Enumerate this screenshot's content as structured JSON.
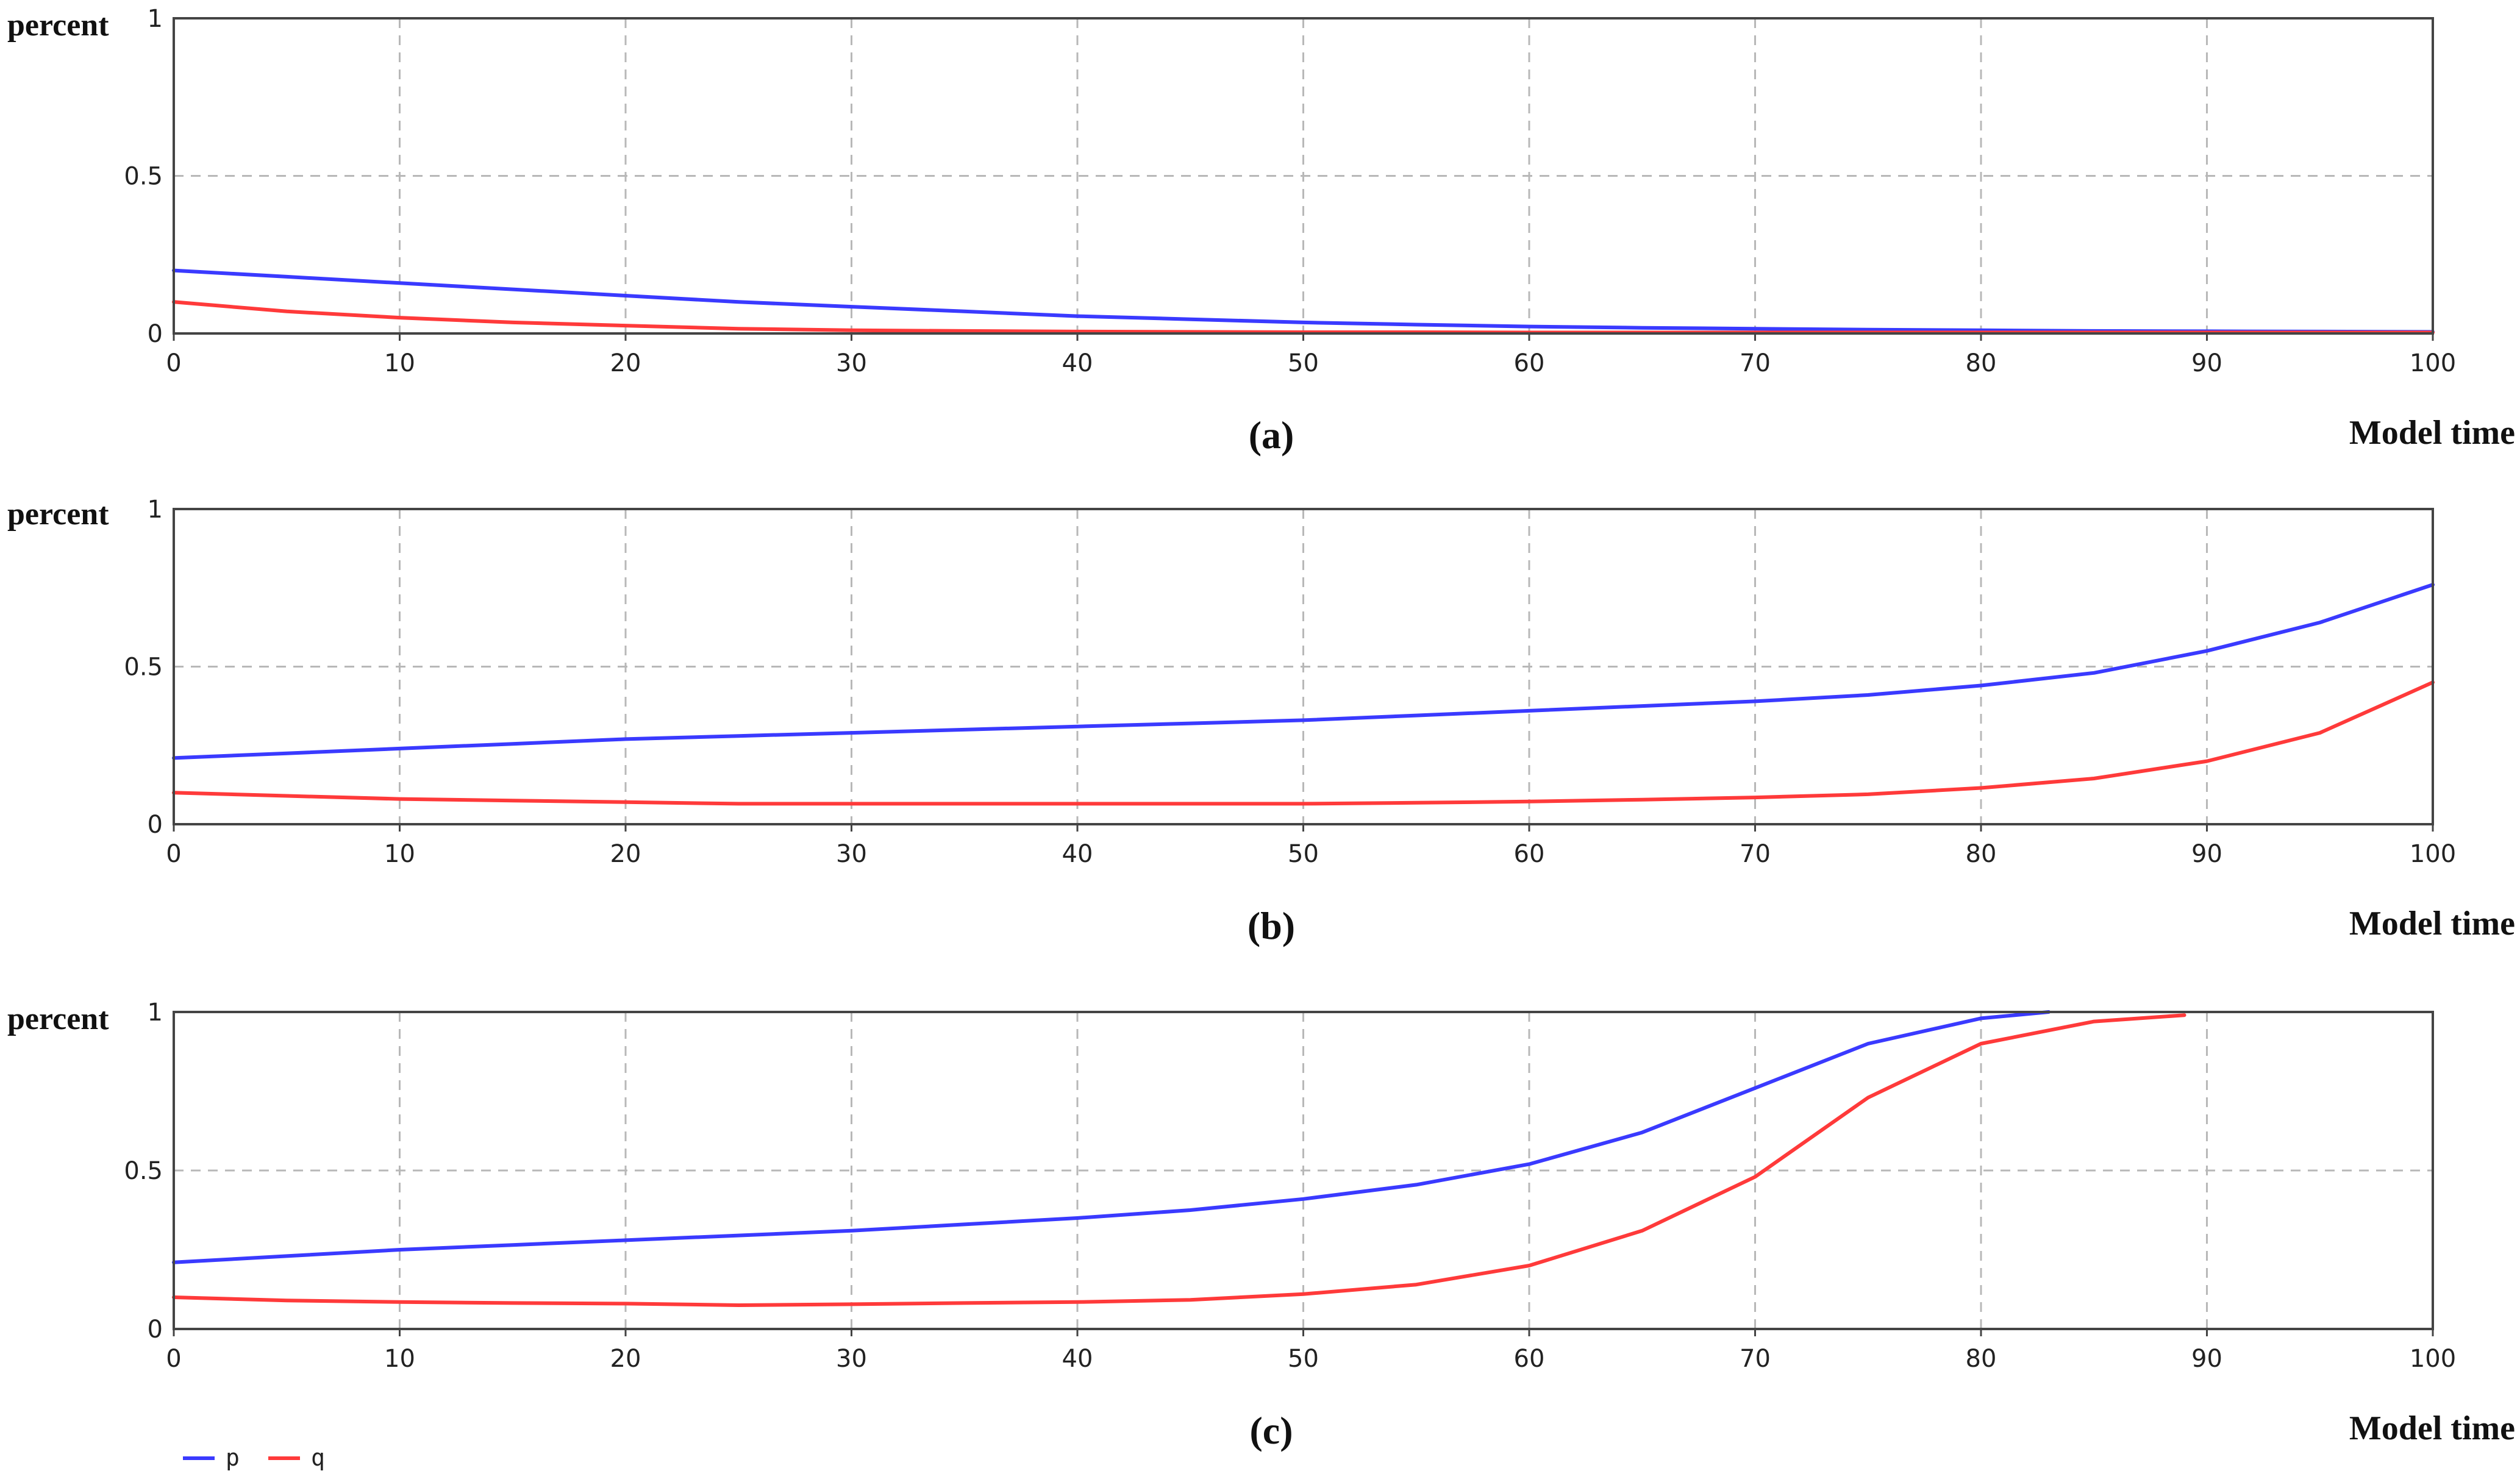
{
  "colors": {
    "p": "#3a3aff",
    "q": "#ff3a3a",
    "grid": "#b8b8b8"
  },
  "legend": [
    {
      "name": "p",
      "color": "#3a3aff"
    },
    {
      "name": "q",
      "color": "#ff3a3a"
    }
  ],
  "chart_data": [
    {
      "type": "line",
      "panel_label": "(a)",
      "ylabel": "percent",
      "xlabel": "Model time",
      "xlim": [
        0,
        100
      ],
      "ylim": [
        0,
        1
      ],
      "xticks": [
        0,
        10,
        20,
        30,
        40,
        50,
        60,
        70,
        80,
        90,
        100
      ],
      "yticks": [
        0,
        0.5,
        1
      ],
      "grid": true,
      "series": [
        {
          "name": "p",
          "color": "#3a3aff",
          "x": [
            0,
            5,
            10,
            15,
            20,
            25,
            30,
            35,
            40,
            45,
            50,
            55,
            60,
            65,
            70,
            75,
            80,
            85,
            90,
            95,
            100
          ],
          "y": [
            0.2,
            0.18,
            0.16,
            0.14,
            0.12,
            0.1,
            0.085,
            0.07,
            0.055,
            0.045,
            0.035,
            0.028,
            0.022,
            0.018,
            0.015,
            0.012,
            0.01,
            0.008,
            0.007,
            0.006,
            0.005
          ]
        },
        {
          "name": "q",
          "color": "#ff3a3a",
          "x": [
            0,
            5,
            10,
            15,
            20,
            25,
            30,
            35,
            40,
            45,
            50,
            55,
            60,
            65,
            70,
            75,
            80,
            85,
            90,
            95,
            100
          ],
          "y": [
            0.1,
            0.07,
            0.05,
            0.035,
            0.025,
            0.015,
            0.01,
            0.008,
            0.006,
            0.005,
            0.004,
            0.004,
            0.003,
            0.003,
            0.003,
            0.003,
            0.003,
            0.003,
            0.003,
            0.003,
            0.003
          ]
        }
      ]
    },
    {
      "type": "line",
      "panel_label": "(b)",
      "ylabel": "percent",
      "xlabel": "Model time",
      "xlim": [
        0,
        100
      ],
      "ylim": [
        0,
        1
      ],
      "xticks": [
        0,
        10,
        20,
        30,
        40,
        50,
        60,
        70,
        80,
        90,
        100
      ],
      "yticks": [
        0,
        0.5,
        1
      ],
      "grid": true,
      "series": [
        {
          "name": "p",
          "color": "#3a3aff",
          "x": [
            0,
            5,
            10,
            15,
            20,
            25,
            30,
            35,
            40,
            45,
            50,
            55,
            60,
            65,
            70,
            75,
            80,
            85,
            90,
            95,
            100
          ],
          "y": [
            0.21,
            0.225,
            0.24,
            0.255,
            0.27,
            0.28,
            0.29,
            0.3,
            0.31,
            0.32,
            0.33,
            0.345,
            0.36,
            0.375,
            0.39,
            0.41,
            0.44,
            0.48,
            0.55,
            0.64,
            0.76
          ]
        },
        {
          "name": "q",
          "color": "#ff3a3a",
          "x": [
            0,
            5,
            10,
            15,
            20,
            25,
            30,
            35,
            40,
            45,
            50,
            55,
            60,
            65,
            70,
            75,
            80,
            85,
            90,
            95,
            100
          ],
          "y": [
            0.1,
            0.09,
            0.08,
            0.075,
            0.07,
            0.065,
            0.065,
            0.065,
            0.065,
            0.065,
            0.065,
            0.068,
            0.072,
            0.078,
            0.085,
            0.095,
            0.115,
            0.145,
            0.2,
            0.29,
            0.45
          ]
        }
      ]
    },
    {
      "type": "line",
      "panel_label": "(c)",
      "ylabel": "percent",
      "xlabel": "Model time",
      "xlim": [
        0,
        100
      ],
      "ylim": [
        0,
        1
      ],
      "xticks": [
        0,
        10,
        20,
        30,
        40,
        50,
        60,
        70,
        80,
        90,
        100
      ],
      "yticks": [
        0,
        0.5,
        1
      ],
      "grid": true,
      "series": [
        {
          "name": "p",
          "color": "#3a3aff",
          "x": [
            0,
            5,
            10,
            15,
            20,
            25,
            30,
            35,
            40,
            45,
            50,
            55,
            60,
            65,
            70,
            75,
            80,
            83
          ],
          "y": [
            0.21,
            0.23,
            0.25,
            0.265,
            0.28,
            0.295,
            0.31,
            0.33,
            0.35,
            0.375,
            0.41,
            0.455,
            0.52,
            0.62,
            0.76,
            0.9,
            0.98,
            1.0
          ]
        },
        {
          "name": "q",
          "color": "#ff3a3a",
          "x": [
            0,
            5,
            10,
            15,
            20,
            25,
            30,
            35,
            40,
            45,
            50,
            55,
            60,
            65,
            70,
            75,
            80,
            85,
            89
          ],
          "y": [
            0.1,
            0.09,
            0.085,
            0.082,
            0.08,
            0.075,
            0.078,
            0.082,
            0.085,
            0.092,
            0.11,
            0.14,
            0.2,
            0.31,
            0.48,
            0.73,
            0.9,
            0.97,
            0.99
          ]
        }
      ]
    }
  ]
}
